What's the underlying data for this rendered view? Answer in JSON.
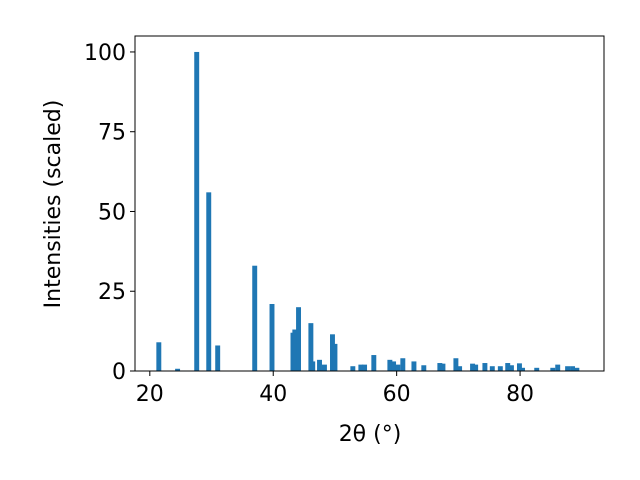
{
  "chart_data": {
    "type": "bar",
    "xlabel": "2θ (°)",
    "ylabel": "Intensities (scaled)",
    "x": [
      21.46,
      24.5,
      27.6,
      29.55,
      31.0,
      37.0,
      39.8,
      43.2,
      43.5,
      44.1,
      46.1,
      46.4,
      47.5,
      48.3,
      49.6,
      50.0,
      52.9,
      54.2,
      54.8,
      56.3,
      58.9,
      59.5,
      60.2,
      61.0,
      62.8,
      64.4,
      67.0,
      67.5,
      69.6,
      70.2,
      72.3,
      72.8,
      74.3,
      75.5,
      76.8,
      78.0,
      78.6,
      79.9,
      80.4,
      82.7,
      85.3,
      86.1,
      87.7,
      88.5,
      89.2
    ],
    "values": [
      9,
      0.7,
      100,
      56,
      8,
      33,
      21,
      12,
      13,
      20,
      15,
      3,
      3.5,
      2,
      11.5,
      8.5,
      1.5,
      2,
      2,
      5,
      3.5,
      3,
      2,
      4,
      3,
      1.8,
      2.5,
      2.3,
      4,
      1.5,
      2.3,
      2,
      2.5,
      1.5,
      1.5,
      2.5,
      1.8,
      2.4,
      1,
      1,
      1,
      2,
      1.5,
      1.5,
      1
    ],
    "color": "#1f77b4",
    "xlim": [
      17.6,
      93.6
    ],
    "ylim": [
      0,
      105
    ],
    "xticks": [
      20,
      40,
      60,
      80
    ],
    "yticks": [
      0,
      25,
      50,
      75,
      100
    ]
  }
}
